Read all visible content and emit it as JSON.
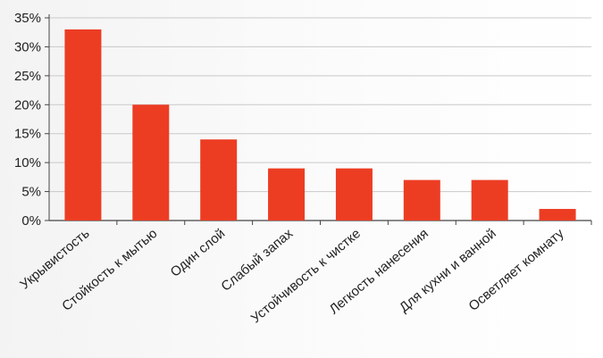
{
  "chart_data": {
    "type": "bar",
    "categories": [
      "Укрывистость",
      "Стойкость к мытью",
      "Один слой",
      "Слабый запах",
      "Устойчивость к чистке",
      "Легкость нанесения",
      "Для кухни и ванной",
      "Осветляет комнату"
    ],
    "series": [
      {
        "values": [
          33,
          20,
          14,
          9,
          9,
          7,
          7,
          2
        ]
      }
    ],
    "y_ticks": [
      "0%",
      "5%",
      "10%",
      "15%",
      "20%",
      "25%",
      "30%",
      "35%"
    ],
    "ylim": [
      0,
      35
    ],
    "y_unit": "%",
    "title": "",
    "xlabel": "",
    "ylabel": "",
    "grid": true,
    "legend": "none",
    "bar_color": "#ec3d23",
    "grid_color": "#c9c9c9",
    "axis_color": "#444444"
  }
}
